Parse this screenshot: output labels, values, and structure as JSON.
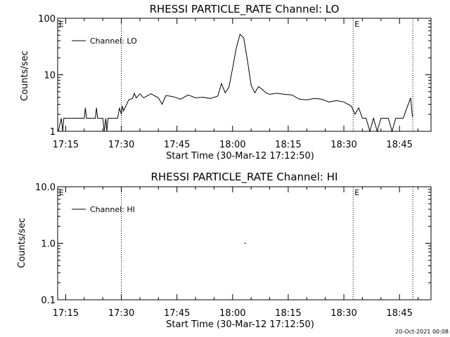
{
  "chart_data": [
    {
      "type": "line",
      "title": "RHESSI PARTICLE_RATE Channel: LO",
      "xlabel": "Start Time (30-Mar-12 17:12:50)",
      "ylabel": "Counts/sec",
      "y_scale": "log",
      "ylim": [
        1,
        100
      ],
      "yticks": [
        "1",
        "10",
        "100"
      ],
      "x_range_minutes_after_1700": [
        12.83,
        53.5
      ],
      "xticks": [
        "17:15",
        "17:30",
        "17:45",
        "18:00",
        "18:15",
        "18:30",
        "18:45"
      ],
      "legend": "top-left",
      "grid": false,
      "vlines_minutes_after_1700": [
        30,
        92.5,
        108.6
      ],
      "vline_markers": [
        {
          "label": "E",
          "at_minute": 12.83
        },
        {
          "label": "E",
          "at_minute": 92.5
        }
      ],
      "series": [
        {
          "name": "Channel: LO",
          "x": [
            13.0,
            13.8,
            14.2,
            14.5,
            15.0,
            16.0,
            18.0,
            20.0,
            20.3,
            20.6,
            21.0,
            22.0,
            23.0,
            23.3,
            23.6,
            24.0,
            25.0,
            25.4,
            25.8,
            26.1,
            26.4,
            27.0,
            28.0,
            29.0,
            29.5,
            30.0,
            30.3,
            30.6,
            31.0,
            32.0,
            33.0,
            33.5,
            34.0,
            35.0,
            36.0,
            38.0,
            40.0,
            41.0,
            42.0,
            44.0,
            46.0,
            48.0,
            50.0,
            52.0,
            54.0,
            56.0,
            57.0,
            58.0,
            59.0,
            60.0,
            61.0,
            62.0,
            63.0,
            64.0,
            65.0,
            66.0,
            67.0,
            68.0,
            69.0,
            70.0,
            72.0,
            74.0,
            76.0,
            78.0,
            80.0,
            82.0,
            84.0,
            86.0,
            88.0,
            90.0,
            92.0,
            93.0,
            94.0,
            95.0,
            96.0,
            97.0,
            98.0,
            99.0,
            100.0,
            101.0,
            102.0,
            103.0,
            104.0,
            105.0,
            106.0,
            107.0,
            108.0,
            108.5
          ],
          "values": [
            1.0,
            1.7,
            1.0,
            1.7,
            1.7,
            1.7,
            1.7,
            1.7,
            2.6,
            1.7,
            1.7,
            1.7,
            1.7,
            2.6,
            1.7,
            1.7,
            1.7,
            1.0,
            1.7,
            1.0,
            1.7,
            1.7,
            1.7,
            1.7,
            2.6,
            2.0,
            2.8,
            2.3,
            2.6,
            3.6,
            3.8,
            4.7,
            3.9,
            4.6,
            3.9,
            4.6,
            3.9,
            3.0,
            4.3,
            4.1,
            3.7,
            4.4,
            3.9,
            4.0,
            3.8,
            4.2,
            7.0,
            4.8,
            6.0,
            13.0,
            30.0,
            52.0,
            45.0,
            18.0,
            6.5,
            4.8,
            6.2,
            5.5,
            4.8,
            4.5,
            4.7,
            4.5,
            4.4,
            3.7,
            3.6,
            3.8,
            3.7,
            3.3,
            3.5,
            3.3,
            2.8,
            2.0,
            2.6,
            1.7,
            1.7,
            1.0,
            1.7,
            1.0,
            1.7,
            1.7,
            1.7,
            1.0,
            1.7,
            1.7,
            1.7,
            2.6,
            3.9,
            1.8
          ]
        }
      ]
    },
    {
      "type": "line",
      "title": "RHESSI PARTICLE_RATE Channel: HI",
      "xlabel": "Start Time (30-Mar-12 17:12:50)",
      "ylabel": "Counts/sec",
      "y_scale": "log",
      "ylim": [
        0.1,
        10
      ],
      "yticks": [
        "0.1",
        "1.0",
        "10.0"
      ],
      "x_range_minutes_after_1700": [
        12.83,
        53.5
      ],
      "xticks": [
        "17:15",
        "17:30",
        "17:45",
        "18:00",
        "18:15",
        "18:30",
        "18:45"
      ],
      "legend": "top-left",
      "grid": false,
      "vlines_minutes_after_1700": [
        30,
        92.5,
        108.6
      ],
      "vline_markers": [
        {
          "label": "E",
          "at_minute": 12.83
        },
        {
          "label": "E",
          "at_minute": 92.5
        }
      ],
      "series": [
        {
          "name": "Channel: HI",
          "x": [
            63.2,
            63.6
          ],
          "values": [
            1.0,
            1.0
          ]
        }
      ]
    }
  ],
  "footer": {
    "timestamp": "20-Oct-2021 00:08"
  }
}
